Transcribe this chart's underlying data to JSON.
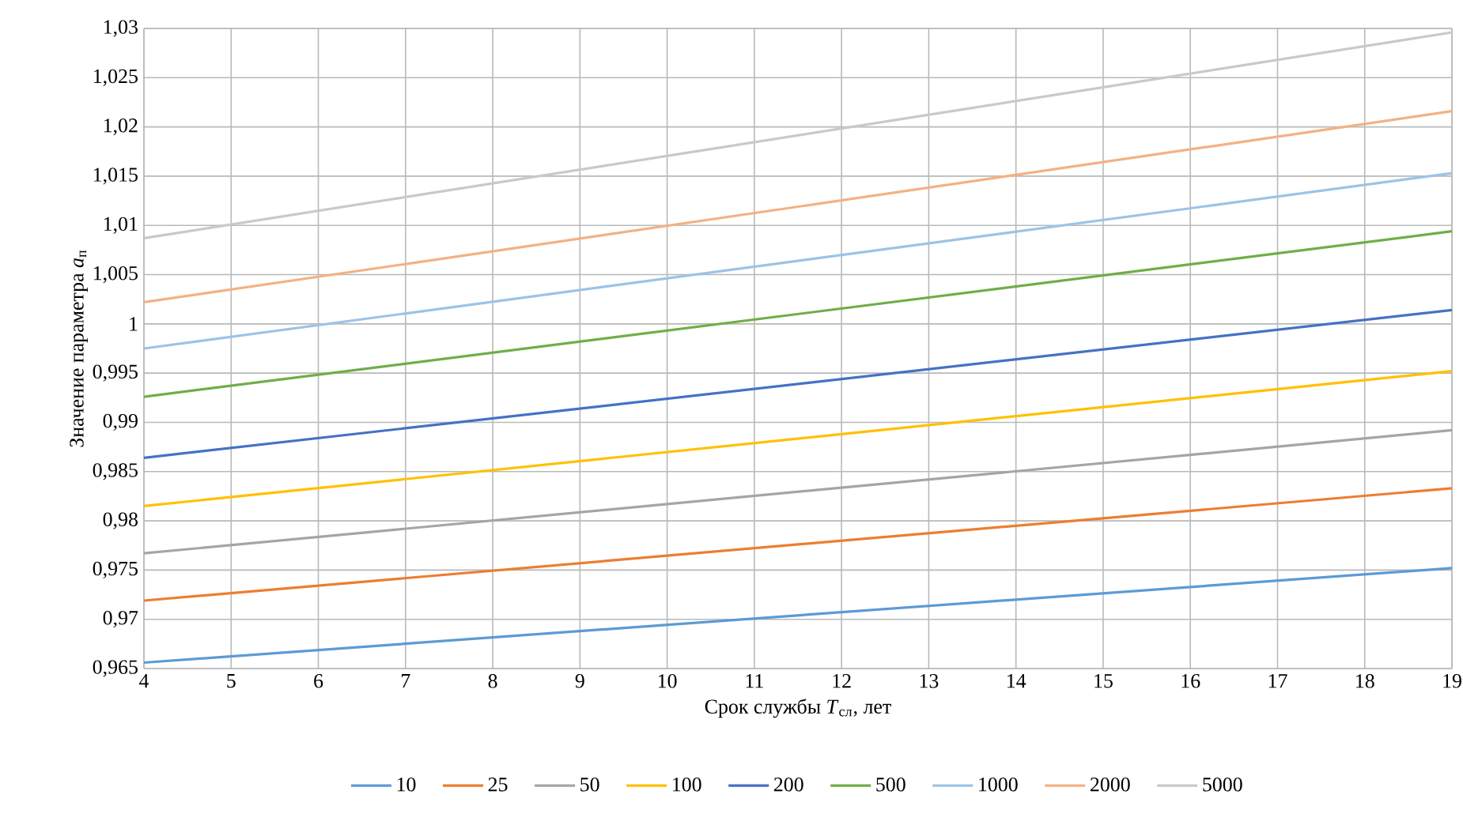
{
  "chart_data": {
    "type": "line",
    "xlabel": "Срок службы *T*$_{сл}$, лет",
    "ylabel": "Значение параметра *a*$_{п}$",
    "x": [
      4,
      19
    ],
    "series": [
      {
        "name": "10",
        "color": "#5b9bd5",
        "values": [
          0.9656,
          0.9752
        ]
      },
      {
        "name": "25",
        "color": "#ed7d31",
        "values": [
          0.9719,
          0.9833
        ]
      },
      {
        "name": "50",
        "color": "#a5a5a5",
        "values": [
          0.9767,
          0.9892
        ]
      },
      {
        "name": "100",
        "color": "#ffc000",
        "values": [
          0.9815,
          0.9952
        ]
      },
      {
        "name": "200",
        "color": "#4472c4",
        "values": [
          0.9864,
          1.0014
        ]
      },
      {
        "name": "500",
        "color": "#70ad47",
        "values": [
          0.9926,
          1.0094
        ]
      },
      {
        "name": "1000",
        "color": "#9dc3e6",
        "values": [
          0.9975,
          1.0153
        ]
      },
      {
        "name": "2000",
        "color": "#f4b183",
        "values": [
          1.0022,
          1.0216
        ]
      },
      {
        "name": "5000",
        "color": "#c9c9c9",
        "values": [
          1.0087,
          1.0296
        ]
      }
    ],
    "xlim": [
      4,
      19
    ],
    "xticks": [
      4,
      5,
      6,
      7,
      8,
      9,
      10,
      11,
      12,
      13,
      14,
      15,
      16,
      17,
      18,
      19
    ],
    "ylim": [
      0.965,
      1.03
    ],
    "yticks": [
      {
        "value": 0.965,
        "label": "0,965"
      },
      {
        "value": 0.97,
        "label": "0,97"
      },
      {
        "value": 0.975,
        "label": "0,975"
      },
      {
        "value": 0.98,
        "label": "0,98"
      },
      {
        "value": 0.985,
        "label": "0,985"
      },
      {
        "value": 0.99,
        "label": "0,99"
      },
      {
        "value": 0.995,
        "label": "0,995"
      },
      {
        "value": 1,
        "label": "1"
      },
      {
        "value": 1.005,
        "label": "1,005"
      },
      {
        "value": 1.01,
        "label": "1,01"
      },
      {
        "value": 1.015,
        "label": "1,015"
      },
      {
        "value": 1.02,
        "label": "1,02"
      },
      {
        "value": 1.025,
        "label": "1,025"
      },
      {
        "value": 1.03,
        "label": "1,03"
      }
    ],
    "grid": true,
    "legend": "bottom",
    "marker": "none",
    "line_style": "solid"
  }
}
